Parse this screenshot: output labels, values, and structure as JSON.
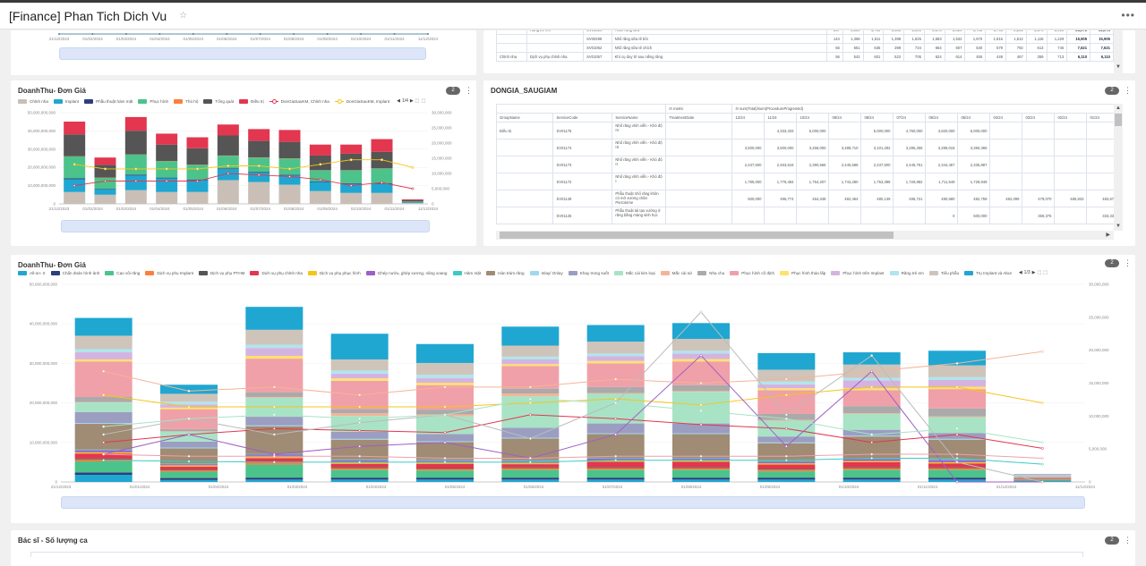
{
  "header": {
    "title": "[Finance] Phan Tich Dich Vu",
    "star_icon": "star-outline-icon",
    "more_icon": "more-horizontal-icon"
  },
  "top_chart_remnant": {
    "x_ticks": [
      "21/12/2023",
      "01/02/2024",
      "01/03/2024",
      "01/04/2024",
      "01/05/2024",
      "01/06/2024",
      "01/07/2024",
      "01/08/2024",
      "01/09/2024",
      "01/10/2024",
      "01/11/2024",
      "11/12/2024"
    ]
  },
  "top_table": {
    "rows": [
      {
        "group": "",
        "name": "Răng trẻ em",
        "code": "SV00314",
        "service": "Trám răng sữa",
        "values": [
          "237",
          "1,889",
          "1,789",
          "1,636",
          "2,000",
          "2,175",
          "2,020",
          "1,703",
          "1,793",
          "2,281",
          "1,379",
          "2,019"
        ],
        "subtotal": "21,078",
        "total": "21,078"
      },
      {
        "group": "",
        "name": "",
        "code": "SV00298",
        "service": "Nhổ răng sữa tê bôi",
        "values": [
          "144",
          "1,368",
          "1,511",
          "1,398",
          "1,625",
          "1,583",
          "1,532",
          "1,670",
          "1,615",
          "1,512",
          "1,118",
          "1,229"
        ],
        "subtotal": "15,905",
        "total": "15,905"
      },
      {
        "group": "",
        "name": "",
        "code": "SV01062",
        "service": "Nhổ răng sữa tê chích",
        "values": [
          "56",
          "651",
          "635",
          "399",
          "734",
          "664",
          "607",
          "640",
          "579",
          "792",
          "613",
          "745"
        ],
        "subtotal": "7,621",
        "total": "7,621"
      },
      {
        "group": "Chỉnh nha",
        "name": "Dịch vụ phụ chỉnh nha",
        "code": "SV01057",
        "service": "Khí cụ duy trì sau niềng răng",
        "values": [
          "56",
          "542",
          "601",
          "522",
          "705",
          "624",
          "614",
          "455",
          "449",
          "467",
          "359",
          "713"
        ],
        "subtotal": "6,110",
        "total": "6,110"
      }
    ]
  },
  "panel_left": {
    "title": "DoanhThu- Đơn Giá",
    "badge": "2",
    "legend_page": "1/4"
  },
  "panel_pivot": {
    "title": "DONGIA_SAUGIAM",
    "badge": "2",
    "header": {
      "metric_label": "metric",
      "metric_value": "sum(Total)/sum(ProcedureProgressId)",
      "metric_value2": "DonGia",
      "treatment_date": "TreatmentDate",
      "row_headers": [
        "GroupName",
        "ServiceCode",
        "ServiceName"
      ],
      "months": [
        "12/24",
        "11/24",
        "10/24",
        "09/24",
        "08/24",
        "07/24",
        "06/24",
        "05/24",
        "04/24",
        "03/24",
        "02/24",
        "01/24"
      ],
      "subtotal": "Subtotal",
      "months2": [
        "12/24",
        "11/24",
        "10/24",
        "09/24"
      ]
    },
    "rows": [
      {
        "group": "Điều trị",
        "code": "SV01175",
        "name": "Nhổ răng vĩnh viễn - Khó độ IV",
        "values": [
          "",
          "4,333,333",
          "5,000,000",
          "",
          "5,000,000",
          "4,750,000",
          "3,820,000",
          "5,000,000",
          "",
          "",
          "",
          ""
        ],
        "subtotal": "27,903,333",
        "values2": [
          "",
          "5,000,000",
          "5,000,000",
          ""
        ]
      },
      {
        "group": "",
        "code": "SV01174",
        "name": "Nhổ răng vĩnh viễn - Khó độ III",
        "values": [
          "3,500,000",
          "3,500,000",
          "3,458,000",
          "3,488,710",
          "3,101,292",
          "3,285,256",
          "3,289,015",
          "3,360,366",
          "",
          "",
          "",
          ""
        ],
        "subtotal": "26,982,639",
        "values2": [
          "3,500,000",
          "3,500,000",
          "3,500,000",
          "3,500"
        ]
      },
      {
        "group": "",
        "code": "SV01173",
        "name": "Nhổ răng vĩnh viễn - Khó độ II",
        "values": [
          "2,437,500",
          "2,463,516",
          "2,390,566",
          "2,445,588",
          "2,437,500",
          "2,445,751",
          "2,344,467",
          "2,335,887",
          "",
          "",
          "",
          ""
        ],
        "subtotal": "19,320,816",
        "values2": [
          "2,500,000",
          "2,500,000",
          "2,500,000",
          "2,500"
        ]
      },
      {
        "group": "",
        "code": "SV01172",
        "name": "Nhổ răng vĩnh viễn - Khó độ I",
        "values": [
          "1,785,000",
          "1,776,484",
          "1,754,207",
          "1,743,280",
          "1,753,398",
          "1,729,882",
          "1,711,549",
          "1,728,949",
          "",
          "",
          "",
          ""
        ],
        "subtotal": "13,982,748",
        "values2": [
          "1,800,000",
          "1,800,000",
          "1,800,000",
          "1,800"
        ]
      },
      {
        "group": "",
        "code": "SV01149",
        "name": "Phẫu thuật nhổ răng khôn có mở xương chân Piezotome",
        "values": [
          "500,000",
          "496,774",
          "454,348",
          "482,464",
          "480,139",
          "496,721",
          "490,580",
          "482,759",
          "482,099",
          "479,070",
          "485,833",
          "483,671"
        ],
        "subtotal": "5,815,678",
        "values2": [
          "500,000",
          "500,000",
          "500,000",
          "500"
        ]
      },
      {
        "group": "",
        "code": "SV01125",
        "name": "Phẫu thuật tái tạo vướng ở răng bằng màng sinh học",
        "values": [
          "",
          "",
          "",
          "",
          "",
          "",
          "0",
          "500,000",
          "",
          "359,375",
          "",
          "333,333"
        ],
        "subtotal": "1,192,708",
        "values2": [
          "",
          "",
          "",
          ""
        ]
      }
    ]
  },
  "panel_big": {
    "title": "DoanhThu- Đơn Giá",
    "badge": "2",
    "legend_page": "1/3"
  },
  "panel_bottom": {
    "title": "Bác sĩ - Số lượng ca",
    "badge": "2"
  },
  "chart_data": [
    {
      "type": "bar",
      "title": "DoanhThu- Đơn Giá",
      "stacked": true,
      "categories": [
        "01/01/2024",
        "01/02/2024",
        "01/03/2024",
        "01/04/2024",
        "01/05/2024",
        "01/06/2024",
        "01/07/2024",
        "01/08/2024",
        "01/09/2024",
        "01/10/2024",
        "01/11/2024",
        "01/12/2024"
      ],
      "x_ticks": [
        "21/12/2023",
        "01/02/2024",
        "01/03/2024",
        "01/04/2024",
        "01/05/2024",
        "01/06/2024",
        "01/07/2024",
        "01/08/2024",
        "01/09/2024",
        "01/10/2024",
        "01/11/2024",
        "11/12/2024"
      ],
      "y_ticks_left": [
        "0",
        "10,000,000,000",
        "20,000,000,000",
        "30,000,000,000",
        "40,000,000,000",
        "50,000,000,000"
      ],
      "y_ticks_right": [
        "0",
        "5,000,000",
        "10,000,000",
        "15,000,000",
        "20,000,000",
        "25,000,000",
        "30,000,000"
      ],
      "ylim": [
        0,
        50000000000
      ],
      "y2lim": [
        0,
        30000000
      ],
      "legend_position": "top",
      "series": [
        {
          "name": "Chỉnh nha",
          "color": "#c9bfb6",
          "values": [
            6.5,
            5,
            7.5,
            6.5,
            6.5,
            13,
            12,
            10.5,
            7,
            6,
            6,
            0.5
          ]
        },
        {
          "name": "Implant",
          "color": "#1fa7d2",
          "values": [
            7,
            3,
            8,
            7.5,
            6.5,
            6,
            5,
            5,
            5,
            5,
            5,
            0.3
          ]
        },
        {
          "name": "Phẫu thuật hàm mặt",
          "color": "#2c3e7b",
          "values": [
            0.5,
            0.3,
            0.5,
            0.4,
            0.4,
            0.4,
            0.4,
            0.4,
            0.4,
            0.4,
            0.4,
            0.1
          ]
        },
        {
          "name": "Phục hình",
          "color": "#4cc38a",
          "values": [
            12,
            6,
            11,
            9,
            8,
            7,
            8,
            9,
            6,
            7,
            8,
            0.4
          ]
        },
        {
          "name": "Thủ hộ",
          "color": "#ff7e3e",
          "values": [
            0.1,
            0.1,
            0.1,
            0.1,
            0.1,
            0.1,
            0.1,
            0.1,
            0.1,
            0.1,
            0.1,
            0
          ]
        },
        {
          "name": "Tổng quát",
          "color": "#555555",
          "values": [
            12,
            7,
            13,
            9,
            9,
            11,
            9,
            9,
            8,
            9,
            9,
            0.7
          ]
        },
        {
          "name": "Điều trị",
          "color": "#e3364f",
          "values": [
            7,
            4,
            7.5,
            6,
            6,
            6,
            6.5,
            6.5,
            6,
            5,
            7,
            0.5
          ]
        }
      ],
      "line_series": [
        {
          "name": "DonGiaSauKM, Chỉnh nha",
          "color": "#e3364f",
          "values": [
            6,
            7.5,
            7.5,
            7.5,
            7.5,
            10,
            9.5,
            9,
            8,
            6,
            7,
            5
          ]
        },
        {
          "name": "DonGiaSauKM, Implant",
          "color": "#f5c518",
          "values": [
            13,
            11.5,
            11.5,
            11.5,
            11.5,
            12.5,
            12.5,
            11.5,
            13,
            14.5,
            14.5,
            12
          ]
        }
      ]
    },
    {
      "type": "bar",
      "title": "DoanhThu- Đơn Giá",
      "stacked": true,
      "categories": [
        "01/01/2024",
        "01/02/2024",
        "01/03/2024",
        "01/04/2024",
        "01/05/2024",
        "01/06/2024",
        "01/07/2024",
        "01/08/2024",
        "01/09/2024",
        "01/10/2024",
        "01/11/2024",
        "01/12/2024"
      ],
      "x_ticks": [
        "21/12/2023",
        "01/01/2024",
        "01/02/2024",
        "01/03/2024",
        "01/04/2024",
        "01/05/2024",
        "01/06/2024",
        "01/07/2024",
        "01/08/2024",
        "01/09/2024",
        "01/10/2024",
        "01/11/2024",
        "01/12/2024",
        "11/12/2024"
      ],
      "y_ticks_left": [
        "0",
        "10,000,000,000",
        "20,000,000,000",
        "30,000,000,000",
        "40,000,000,000",
        "50,000,000,000"
      ],
      "y_ticks_right": [
        "0",
        "5,000,000",
        "10,000,000",
        "15,000,000",
        "20,000,000",
        "25,000,000",
        "30,000,000"
      ],
      "ylim": [
        0,
        50000000000
      ],
      "y2lim": [
        0,
        30000000
      ],
      "legend_position": "top",
      "series": [
        {
          "name": "All-on- X",
          "color": "#1fa7d2",
          "values": [
            1.8,
            0.5,
            0.6,
            0.6,
            0.6,
            0.6,
            0.6,
            0.6,
            0.6,
            0.6,
            0.6,
            0.2
          ]
        },
        {
          "name": "Chẩn đoán hình ảnh",
          "color": "#2c3e7b",
          "values": [
            0.6,
            0.5,
            0.5,
            0.5,
            0.5,
            0.5,
            0.5,
            0.5,
            0.5,
            0.5,
            0.5,
            0.1
          ]
        },
        {
          "name": "Cạo vôi răng",
          "color": "#4cc38a",
          "values": [
            2.8,
            1.6,
            3.3,
            2,
            1.8,
            2,
            2,
            2,
            1.6,
            2,
            2,
            0.2
          ]
        },
        {
          "name": "Dịch vụ phụ Implant",
          "color": "#ff7e3e",
          "values": [
            0.5,
            0.3,
            0.5,
            0.4,
            0.4,
            0.4,
            0.4,
            0.4,
            0.4,
            0.4,
            0.4,
            0.1
          ]
        },
        {
          "name": "Dịch vụ phụ PTHM",
          "color": "#555555",
          "values": [
            0.2,
            0.2,
            0.2,
            0.2,
            0.2,
            0.2,
            0.2,
            0.2,
            0.2,
            0.2,
            0.2,
            0
          ]
        },
        {
          "name": "Dịch vụ phụ chỉnh nha",
          "color": "#e3364f",
          "values": [
            1.3,
            0.8,
            0.9,
            0.9,
            1.1,
            0.8,
            1.4,
            1.4,
            1.1,
            1.3,
            1,
            0.1
          ]
        },
        {
          "name": "Dịch vụ phụ phục hình",
          "color": "#f5c518",
          "values": [
            0.3,
            0.3,
            0.3,
            0.3,
            0.3,
            0.3,
            0.3,
            0.3,
            0.3,
            0.3,
            0.3,
            0
          ]
        },
        {
          "name": "Ghép nướu, ghép xương, nâng xoang",
          "color": "#a05ec7",
          "values": [
            0.5,
            0.3,
            0.6,
            0.6,
            0.5,
            0.5,
            0.5,
            0.5,
            0.4,
            0.5,
            0.5,
            0
          ]
        },
        {
          "name": "Hàm mặt",
          "color": "#3ccbc4",
          "values": [
            0.2,
            0.2,
            0.2,
            0.2,
            0.2,
            0.2,
            0.2,
            0.2,
            0.2,
            0.2,
            0.2,
            0
          ]
        },
        {
          "name": "Hàn trám răng",
          "color": "#a08b74",
          "values": [
            6.5,
            3.8,
            7,
            5,
            4.5,
            5.5,
            6,
            6,
            4.5,
            5.5,
            5,
            0.4
          ]
        },
        {
          "name": "Inlay/ Onlay",
          "color": "#9fd9ec",
          "values": [
            0.2,
            0.2,
            0.2,
            0.2,
            0.2,
            0.2,
            0.2,
            0.2,
            0.2,
            0.2,
            0.2,
            0
          ]
        },
        {
          "name": "Khay trong suốt",
          "color": "#9b9ec0",
          "values": [
            2.8,
            1.5,
            2.2,
            1.8,
            1.8,
            2.5,
            2.5,
            2.5,
            1.5,
            1.5,
            1.5,
            0.1
          ]
        },
        {
          "name": "Mắc cài kim loại",
          "color": "#a8e3c6",
          "values": [
            2.4,
            2.5,
            4.8,
            4,
            4.5,
            8,
            7.5,
            8,
            4,
            4,
            4,
            0.1
          ]
        },
        {
          "name": "Mắc cài sứ",
          "color": "#f5b497",
          "values": [
            0.1,
            0.1,
            0.2,
            0.7,
            0.5,
            0.7,
            0.2,
            0.2,
            0.2,
            0.2,
            0.2,
            0
          ]
        },
        {
          "name": "Nha chu",
          "color": "#aaaaaa",
          "values": [
            1.3,
            0.6,
            1.2,
            1,
            1.2,
            1.2,
            1.5,
            1.5,
            1.5,
            1.8,
            2,
            0.1
          ]
        },
        {
          "name": "Phục hình cố định",
          "color": "#f0a0a8",
          "values": [
            9,
            5,
            8.5,
            7.2,
            6.2,
            5.7,
            6,
            6,
            6,
            4,
            4.9,
            0.3
          ]
        },
        {
          "name": "Phục hình tháo lắp",
          "color": "#ffe26b",
          "values": [
            0.5,
            0.4,
            0.7,
            0.6,
            0.6,
            0.5,
            0.6,
            0.6,
            0.5,
            0.5,
            0.6,
            0
          ]
        },
        {
          "name": "Phục hình trên Implant",
          "color": "#d5b3e0",
          "values": [
            1.8,
            0.8,
            2,
            1.2,
            1.2,
            1.2,
            1.2,
            1.4,
            1,
            2,
            1.7,
            0
          ]
        },
        {
          "name": "Răng trẻ em",
          "color": "#aee6ee",
          "values": [
            0.8,
            0.7,
            0.8,
            0.8,
            0.8,
            0.7,
            0.7,
            0.7,
            0.7,
            0.6,
            0.7,
            0.1
          ]
        },
        {
          "name": "Tiểu phẫu",
          "color": "#cfc4ba",
          "values": [
            3.4,
            2,
            3.8,
            2.8,
            3,
            2.8,
            3,
            3,
            3,
            3.4,
            3,
            0.1
          ]
        },
        {
          "name": "Trụ Implant và Abut",
          "color": "#1fa7d2",
          "values": [
            4.5,
            2.3,
            5.8,
            6.5,
            4.8,
            4.8,
            4.2,
            4,
            4.2,
            3.1,
            3.7,
            0.1
          ]
        }
      ]
    }
  ]
}
